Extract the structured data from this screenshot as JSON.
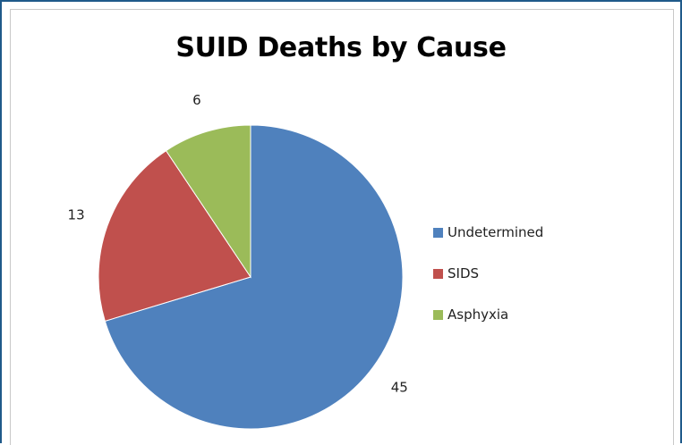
{
  "chart_data": {
    "type": "pie",
    "title": "SUID Deaths by Cause",
    "categories": [
      "Undetermined",
      "SIDS",
      "Asphyxia"
    ],
    "values": [
      45,
      13,
      6
    ],
    "colors": [
      "#4f81bd",
      "#c0504d",
      "#9bbb59"
    ],
    "data_labels": [
      "45",
      "13",
      "6"
    ],
    "start_angle_deg": 0,
    "direction": "clockwise",
    "legend": "right"
  }
}
